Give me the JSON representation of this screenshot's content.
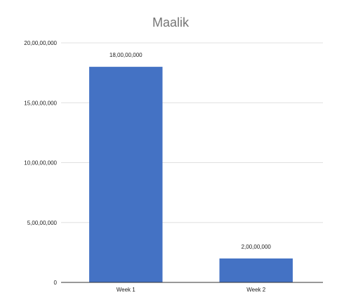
{
  "chart_data": {
    "type": "bar",
    "title": "Maalik",
    "categories": [
      "Week 1",
      "Week 2"
    ],
    "values": [
      180000000,
      20000000
    ],
    "data_labels": [
      "18,00,00,000",
      "2,00,00,000"
    ],
    "ylim": [
      0,
      200000000
    ],
    "y_ticks": [
      0,
      50000000,
      100000000,
      150000000,
      200000000
    ],
    "y_tick_labels": [
      "0",
      "5,00,00,000",
      "10,00,00,000",
      "15,00,00,000",
      "20,00,00,000"
    ],
    "xlabel": "",
    "ylabel": "",
    "grid": true,
    "legend": "none",
    "bar_color": "#4472c4"
  }
}
